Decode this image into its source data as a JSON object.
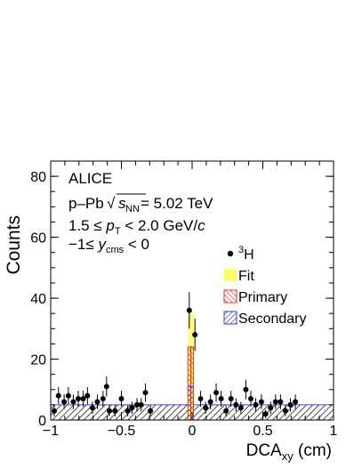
{
  "chart_data": {
    "type": "histogram",
    "title": "",
    "ylabel": "Counts",
    "xlabel_main": "DCA",
    "xlabel_sub": "xy",
    "xlabel_unit": " (cm)",
    "xlim": [
      -1,
      1
    ],
    "ylim": [
      0,
      85
    ],
    "x_ticks": [
      -1,
      -0.5,
      0,
      0.5,
      1
    ],
    "x_tick_labels": [
      "−1",
      "−0.5",
      "0",
      "0.5",
      "1"
    ],
    "y_ticks": [
      0,
      20,
      40,
      60,
      80
    ],
    "y_tick_labels": [
      "0",
      "20",
      "40",
      "60",
      "80"
    ],
    "annotations": {
      "experiment": "ALICE",
      "system_prefix": "p–Pb",
      "sqrt_s_sub": "NN",
      "energy": " = 5.02 TeV",
      "pt_range_prefix": "1.5 ≤ ",
      "pt_symbol": "p",
      "pt_sub": "T",
      "pt_range_suffix": " < 2.0 GeV/",
      "pt_unit_c": "c",
      "y_range_prefix": "−1≤ ",
      "y_symbol": "y",
      "y_sub": "cms",
      "y_range_suffix": " < 0"
    },
    "legend": {
      "placement": "center-right",
      "data_sup": "3",
      "data_label": "H",
      "fit_label": "Fit",
      "primary_label": "Primary",
      "secondary_label": "Secondary"
    },
    "colors": {
      "fit": "#ffff66",
      "primary": "#e8322e",
      "secondary": "#3b3bd1",
      "total_hatch": "#000000"
    },
    "bin_edges": [
      -1,
      -0.95,
      -0.9,
      -0.85,
      -0.8,
      -0.75,
      -0.7,
      -0.65,
      -0.6,
      -0.55,
      -0.5,
      -0.45,
      -0.4,
      -0.35,
      -0.3,
      -0.25,
      -0.2,
      -0.15,
      -0.1,
      -0.05,
      -0.03,
      -0.01,
      0.01,
      0.03,
      0.05,
      0.1,
      0.15,
      0.2,
      0.25,
      0.3,
      0.35,
      0.4,
      0.45,
      0.5,
      0.55,
      0.6,
      0.65,
      0.7,
      0.75,
      0.8,
      0.85,
      0.9,
      0.95,
      1.0
    ],
    "fit_values": [
      5,
      5,
      5,
      5,
      5,
      5,
      5,
      5,
      5,
      5,
      5,
      5,
      5,
      5,
      5,
      5,
      5,
      5,
      5,
      5,
      35,
      35,
      5,
      5,
      5,
      5,
      5,
      5,
      5,
      5,
      5,
      5,
      5,
      5,
      5,
      5,
      5,
      5,
      5,
      5,
      5,
      5,
      5
    ],
    "primary_values": [
      0,
      0,
      0,
      0,
      0,
      0,
      0,
      0,
      0,
      0,
      0,
      0,
      0,
      0,
      0,
      0,
      0,
      0,
      0,
      0,
      24,
      24,
      0,
      0,
      0,
      0,
      0,
      0,
      0,
      0,
      0,
      0,
      0,
      0,
      0,
      0,
      0,
      0,
      0,
      0,
      0,
      0,
      0
    ],
    "secondary_values": [
      5,
      5,
      5,
      5,
      5,
      5,
      5,
      5,
      5,
      5,
      5,
      5,
      5,
      5,
      5,
      5,
      5,
      5,
      5,
      5,
      11,
      11,
      5,
      5,
      5,
      5,
      5,
      5,
      5,
      5,
      5,
      5,
      5,
      5,
      5,
      5,
      5,
      5,
      5,
      5,
      5,
      5,
      5
    ],
    "data_points": [
      {
        "x": -0.975,
        "y": 3,
        "err": 1.8
      },
      {
        "x": -0.945,
        "y": 8,
        "err": 2.8
      },
      {
        "x": -0.905,
        "y": 6,
        "err": 2.4
      },
      {
        "x": -0.875,
        "y": 8,
        "err": 2.8
      },
      {
        "x": -0.84,
        "y": 6,
        "err": 2.4
      },
      {
        "x": -0.805,
        "y": 7,
        "err": 2.6
      },
      {
        "x": -0.77,
        "y": 7,
        "err": 2.6
      },
      {
        "x": -0.74,
        "y": 8,
        "err": 2.8
      },
      {
        "x": -0.705,
        "y": 4,
        "err": 2.0
      },
      {
        "x": -0.67,
        "y": 6,
        "err": 2.4
      },
      {
        "x": -0.63,
        "y": 7,
        "err": 2.6
      },
      {
        "x": -0.605,
        "y": 11,
        "err": 3.3
      },
      {
        "x": -0.585,
        "y": 3,
        "err": 1.8
      },
      {
        "x": -0.545,
        "y": 3,
        "err": 1.8
      },
      {
        "x": -0.5,
        "y": 7,
        "err": 2.6
      },
      {
        "x": -0.455,
        "y": 3,
        "err": 1.8
      },
      {
        "x": -0.425,
        "y": 4,
        "err": 2.0
      },
      {
        "x": -0.39,
        "y": 5,
        "err": 2.2
      },
      {
        "x": -0.36,
        "y": 5,
        "err": 2.2
      },
      {
        "x": -0.33,
        "y": 9,
        "err": 3.0
      },
      {
        "x": -0.295,
        "y": 3,
        "err": 1.8
      },
      {
        "x": -0.02,
        "y": 36,
        "err": 6.0
      },
      {
        "x": 0.02,
        "y": 28,
        "err": 5.3
      },
      {
        "x": 0.06,
        "y": 7,
        "err": 2.6
      },
      {
        "x": 0.095,
        "y": 4,
        "err": 2.0
      },
      {
        "x": 0.13,
        "y": 6,
        "err": 2.4
      },
      {
        "x": 0.17,
        "y": 9,
        "err": 3.0
      },
      {
        "x": 0.205,
        "y": 7,
        "err": 2.6
      },
      {
        "x": 0.24,
        "y": 3,
        "err": 1.8
      },
      {
        "x": 0.275,
        "y": 7,
        "err": 2.6
      },
      {
        "x": 0.31,
        "y": 5,
        "err": 2.2
      },
      {
        "x": 0.345,
        "y": 4,
        "err": 2.0
      },
      {
        "x": 0.38,
        "y": 10,
        "err": 3.2
      },
      {
        "x": 0.415,
        "y": 7,
        "err": 2.6
      },
      {
        "x": 0.45,
        "y": 5,
        "err": 2.2
      },
      {
        "x": 0.49,
        "y": 6,
        "err": 2.4
      },
      {
        "x": 0.52,
        "y": 2,
        "err": 1.4
      },
      {
        "x": 0.555,
        "y": 4,
        "err": 2.0
      },
      {
        "x": 0.59,
        "y": 6,
        "err": 2.4
      },
      {
        "x": 0.625,
        "y": 6,
        "err": 2.4
      },
      {
        "x": 0.66,
        "y": 3,
        "err": 1.8
      },
      {
        "x": 0.695,
        "y": 5,
        "err": 2.2
      },
      {
        "x": 0.73,
        "y": 6,
        "err": 2.4
      }
    ]
  }
}
